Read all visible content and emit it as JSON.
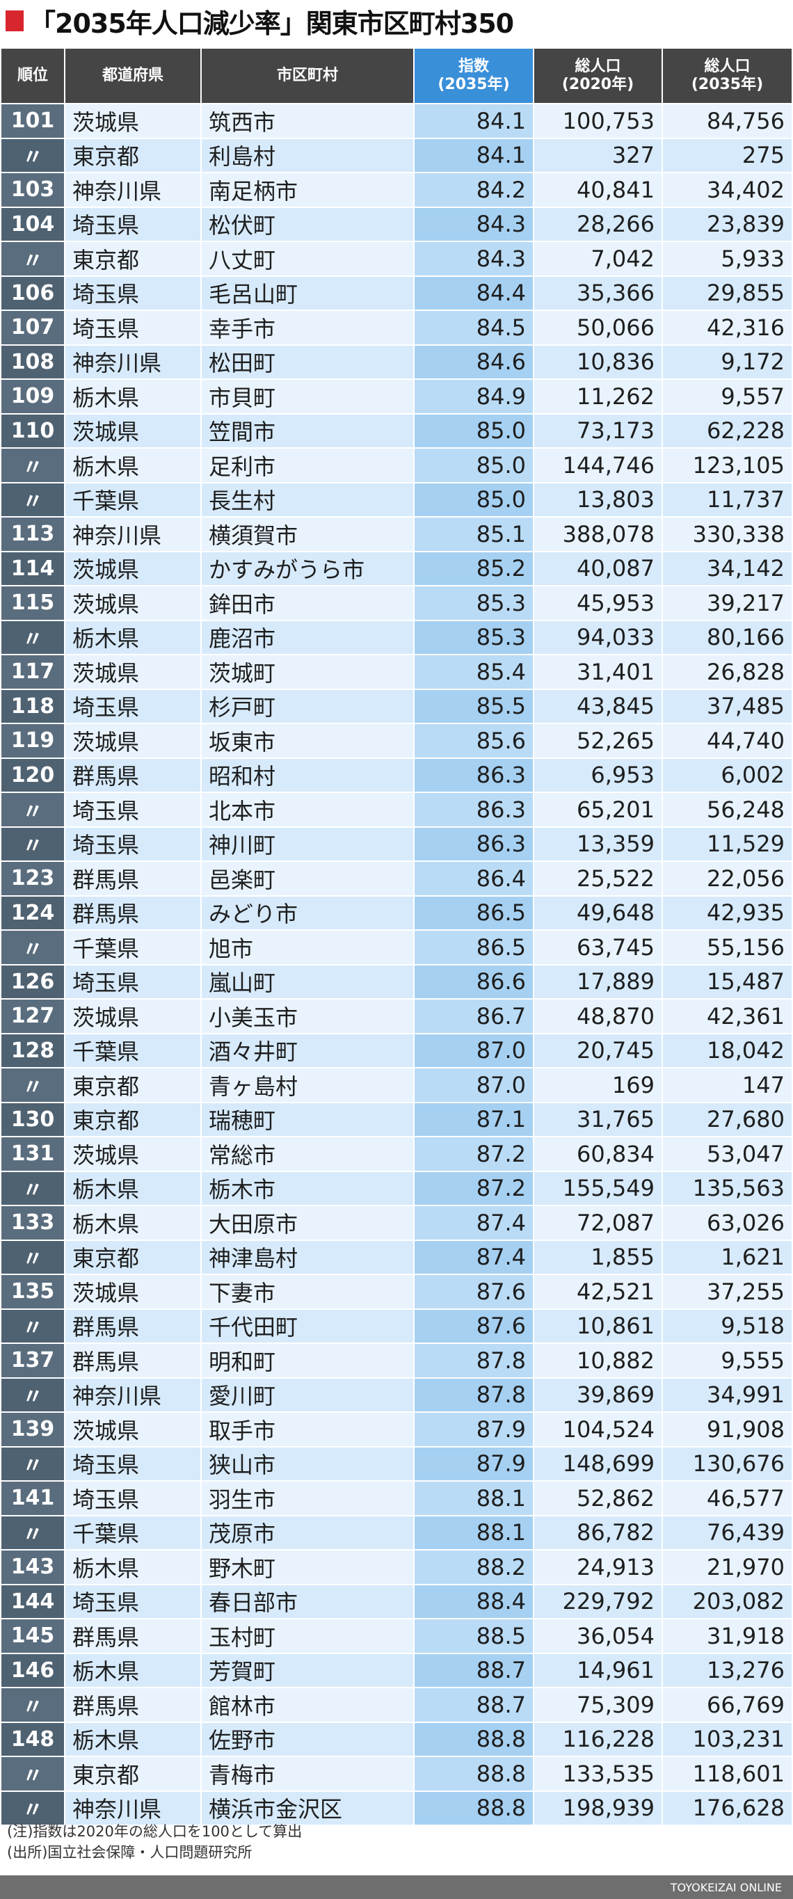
{
  "title": "「2035年人口減少率」関東市区町村350",
  "header": {
    "rank": "順位",
    "prefecture": "都道府県",
    "municipality": "市区町村",
    "index_line1": "指数",
    "index_line2": "(2035年)",
    "pop2020_line1": "総人口",
    "pop2020_line2": "(2020年)",
    "pop2035_line1": "総人口",
    "pop2035_line2": "(2035年)"
  },
  "rows": [
    {
      "rank": "101",
      "pref": "茨城県",
      "city": "筑西市",
      "index": "84.1",
      "pop2020": "100,753",
      "pop2035": "84,756"
    },
    {
      "rank": "〃",
      "pref": "東京都",
      "city": "利島村",
      "index": "84.1",
      "pop2020": "327",
      "pop2035": "275"
    },
    {
      "rank": "103",
      "pref": "神奈川県",
      "city": "南足柄市",
      "index": "84.2",
      "pop2020": "40,841",
      "pop2035": "34,402"
    },
    {
      "rank": "104",
      "pref": "埼玉県",
      "city": "松伏町",
      "index": "84.3",
      "pop2020": "28,266",
      "pop2035": "23,839"
    },
    {
      "rank": "〃",
      "pref": "東京都",
      "city": "八丈町",
      "index": "84.3",
      "pop2020": "7,042",
      "pop2035": "5,933"
    },
    {
      "rank": "106",
      "pref": "埼玉県",
      "city": "毛呂山町",
      "index": "84.4",
      "pop2020": "35,366",
      "pop2035": "29,855"
    },
    {
      "rank": "107",
      "pref": "埼玉県",
      "city": "幸手市",
      "index": "84.5",
      "pop2020": "50,066",
      "pop2035": "42,316"
    },
    {
      "rank": "108",
      "pref": "神奈川県",
      "city": "松田町",
      "index": "84.6",
      "pop2020": "10,836",
      "pop2035": "9,172"
    },
    {
      "rank": "109",
      "pref": "栃木県",
      "city": "市貝町",
      "index": "84.9",
      "pop2020": "11,262",
      "pop2035": "9,557"
    },
    {
      "rank": "110",
      "pref": "茨城県",
      "city": "笠間市",
      "index": "85.0",
      "pop2020": "73,173",
      "pop2035": "62,228"
    },
    {
      "rank": "〃",
      "pref": "栃木県",
      "city": "足利市",
      "index": "85.0",
      "pop2020": "144,746",
      "pop2035": "123,105"
    },
    {
      "rank": "〃",
      "pref": "千葉県",
      "city": "長生村",
      "index": "85.0",
      "pop2020": "13,803",
      "pop2035": "11,737"
    },
    {
      "rank": "113",
      "pref": "神奈川県",
      "city": "横須賀市",
      "index": "85.1",
      "pop2020": "388,078",
      "pop2035": "330,338"
    },
    {
      "rank": "114",
      "pref": "茨城県",
      "city": "かすみがうら市",
      "index": "85.2",
      "pop2020": "40,087",
      "pop2035": "34,142"
    },
    {
      "rank": "115",
      "pref": "茨城県",
      "city": "鉾田市",
      "index": "85.3",
      "pop2020": "45,953",
      "pop2035": "39,217"
    },
    {
      "rank": "〃",
      "pref": "栃木県",
      "city": "鹿沼市",
      "index": "85.3",
      "pop2020": "94,033",
      "pop2035": "80,166"
    },
    {
      "rank": "117",
      "pref": "茨城県",
      "city": "茨城町",
      "index": "85.4",
      "pop2020": "31,401",
      "pop2035": "26,828"
    },
    {
      "rank": "118",
      "pref": "埼玉県",
      "city": "杉戸町",
      "index": "85.5",
      "pop2020": "43,845",
      "pop2035": "37,485"
    },
    {
      "rank": "119",
      "pref": "茨城県",
      "city": "坂東市",
      "index": "85.6",
      "pop2020": "52,265",
      "pop2035": "44,740"
    },
    {
      "rank": "120",
      "pref": "群馬県",
      "city": "昭和村",
      "index": "86.3",
      "pop2020": "6,953",
      "pop2035": "6,002"
    },
    {
      "rank": "〃",
      "pref": "埼玉県",
      "city": "北本市",
      "index": "86.3",
      "pop2020": "65,201",
      "pop2035": "56,248"
    },
    {
      "rank": "〃",
      "pref": "埼玉県",
      "city": "神川町",
      "index": "86.3",
      "pop2020": "13,359",
      "pop2035": "11,529"
    },
    {
      "rank": "123",
      "pref": "群馬県",
      "city": "邑楽町",
      "index": "86.4",
      "pop2020": "25,522",
      "pop2035": "22,056"
    },
    {
      "rank": "124",
      "pref": "群馬県",
      "city": "みどり市",
      "index": "86.5",
      "pop2020": "49,648",
      "pop2035": "42,935"
    },
    {
      "rank": "〃",
      "pref": "千葉県",
      "city": "旭市",
      "index": "86.5",
      "pop2020": "63,745",
      "pop2035": "55,156"
    },
    {
      "rank": "126",
      "pref": "埼玉県",
      "city": "嵐山町",
      "index": "86.6",
      "pop2020": "17,889",
      "pop2035": "15,487"
    },
    {
      "rank": "127",
      "pref": "茨城県",
      "city": "小美玉市",
      "index": "86.7",
      "pop2020": "48,870",
      "pop2035": "42,361"
    },
    {
      "rank": "128",
      "pref": "千葉県",
      "city": "酒々井町",
      "index": "87.0",
      "pop2020": "20,745",
      "pop2035": "18,042"
    },
    {
      "rank": "〃",
      "pref": "東京都",
      "city": "青ヶ島村",
      "index": "87.0",
      "pop2020": "169",
      "pop2035": "147"
    },
    {
      "rank": "130",
      "pref": "東京都",
      "city": "瑞穂町",
      "index": "87.1",
      "pop2020": "31,765",
      "pop2035": "27,680"
    },
    {
      "rank": "131",
      "pref": "茨城県",
      "city": "常総市",
      "index": "87.2",
      "pop2020": "60,834",
      "pop2035": "53,047"
    },
    {
      "rank": "〃",
      "pref": "栃木県",
      "city": "栃木市",
      "index": "87.2",
      "pop2020": "155,549",
      "pop2035": "135,563"
    },
    {
      "rank": "133",
      "pref": "栃木県",
      "city": "大田原市",
      "index": "87.4",
      "pop2020": "72,087",
      "pop2035": "63,026"
    },
    {
      "rank": "〃",
      "pref": "東京都",
      "city": "神津島村",
      "index": "87.4",
      "pop2020": "1,855",
      "pop2035": "1,621"
    },
    {
      "rank": "135",
      "pref": "茨城県",
      "city": "下妻市",
      "index": "87.6",
      "pop2020": "42,521",
      "pop2035": "37,255"
    },
    {
      "rank": "〃",
      "pref": "群馬県",
      "city": "千代田町",
      "index": "87.6",
      "pop2020": "10,861",
      "pop2035": "9,518"
    },
    {
      "rank": "137",
      "pref": "群馬県",
      "city": "明和町",
      "index": "87.8",
      "pop2020": "10,882",
      "pop2035": "9,555"
    },
    {
      "rank": "〃",
      "pref": "神奈川県",
      "city": "愛川町",
      "index": "87.8",
      "pop2020": "39,869",
      "pop2035": "34,991"
    },
    {
      "rank": "139",
      "pref": "茨城県",
      "city": "取手市",
      "index": "87.9",
      "pop2020": "104,524",
      "pop2035": "91,908"
    },
    {
      "rank": "〃",
      "pref": "埼玉県",
      "city": "狭山市",
      "index": "87.9",
      "pop2020": "148,699",
      "pop2035": "130,676"
    },
    {
      "rank": "141",
      "pref": "埼玉県",
      "city": "羽生市",
      "index": "88.1",
      "pop2020": "52,862",
      "pop2035": "46,577"
    },
    {
      "rank": "〃",
      "pref": "千葉県",
      "city": "茂原市",
      "index": "88.1",
      "pop2020": "86,782",
      "pop2035": "76,439"
    },
    {
      "rank": "143",
      "pref": "栃木県",
      "city": "野木町",
      "index": "88.2",
      "pop2020": "24,913",
      "pop2035": "21,970"
    },
    {
      "rank": "144",
      "pref": "埼玉県",
      "city": "春日部市",
      "index": "88.4",
      "pop2020": "229,792",
      "pop2035": "203,082"
    },
    {
      "rank": "145",
      "pref": "群馬県",
      "city": "玉村町",
      "index": "88.5",
      "pop2020": "36,054",
      "pop2035": "31,918"
    },
    {
      "rank": "146",
      "pref": "栃木県",
      "city": "芳賀町",
      "index": "88.7",
      "pop2020": "14,961",
      "pop2035": "13,276"
    },
    {
      "rank": "〃",
      "pref": "群馬県",
      "city": "館林市",
      "index": "88.7",
      "pop2020": "75,309",
      "pop2035": "66,769"
    },
    {
      "rank": "148",
      "pref": "栃木県",
      "city": "佐野市",
      "index": "88.8",
      "pop2020": "116,228",
      "pop2035": "103,231"
    },
    {
      "rank": "〃",
      "pref": "東京都",
      "city": "青梅市",
      "index": "88.8",
      "pop2020": "133,535",
      "pop2035": "118,601"
    },
    {
      "rank": "〃",
      "pref": "神奈川県",
      "city": "横浜市金沢区",
      "index": "88.8",
      "pop2020": "198,939",
      "pop2035": "176,628"
    }
  ],
  "notes": {
    "note": "(注)指数は2020年の総人口を100として算出",
    "source": "(出所)国立社会保障・人口問題研究所"
  },
  "footer": {
    "brand": "TOYOKEIZAI ONLINE"
  },
  "colors": {
    "title_mark": "#d8262f",
    "header_bg": "#454545",
    "header_index_bg": "#3a8fd9",
    "rank_bg": "#5a6d7e",
    "row_light": "#e8f3fd",
    "row_dark": "#d6eafb",
    "index_light": "#b9dbf6",
    "index_dark": "#a5d0f2",
    "footer_bg": "#6e6e6e"
  }
}
